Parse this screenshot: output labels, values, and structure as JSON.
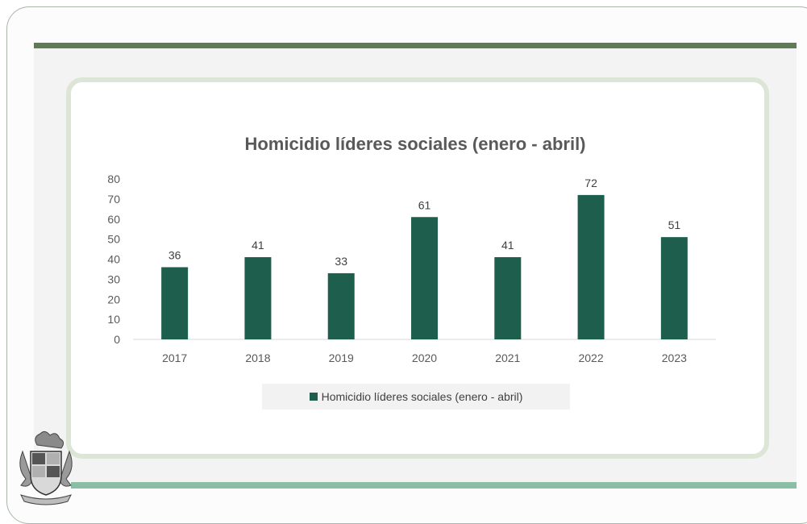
{
  "colors": {
    "bar": "#1e5e4d",
    "top_bar": "#5f7c57",
    "bottom_bar": "#8bbea4",
    "card_border": "#dde6d6",
    "panel": "#f3f3f3"
  },
  "chart_data": {
    "type": "bar",
    "title": "Homicidio líderes sociales (enero - abril)",
    "categories": [
      "2017",
      "2018",
      "2019",
      "2020",
      "2021",
      "2022",
      "2023"
    ],
    "series": [
      {
        "name": "Homicidio líderes sociales (enero - abril)",
        "values": [
          36,
          41,
          33,
          61,
          41,
          72,
          51
        ]
      }
    ],
    "ylim": [
      0,
      80
    ],
    "yticks": [
      "0",
      "10",
      "20",
      "30",
      "40",
      "50",
      "60",
      "70",
      "80"
    ],
    "data_labels": true,
    "legend": "bottom",
    "grid": false
  }
}
